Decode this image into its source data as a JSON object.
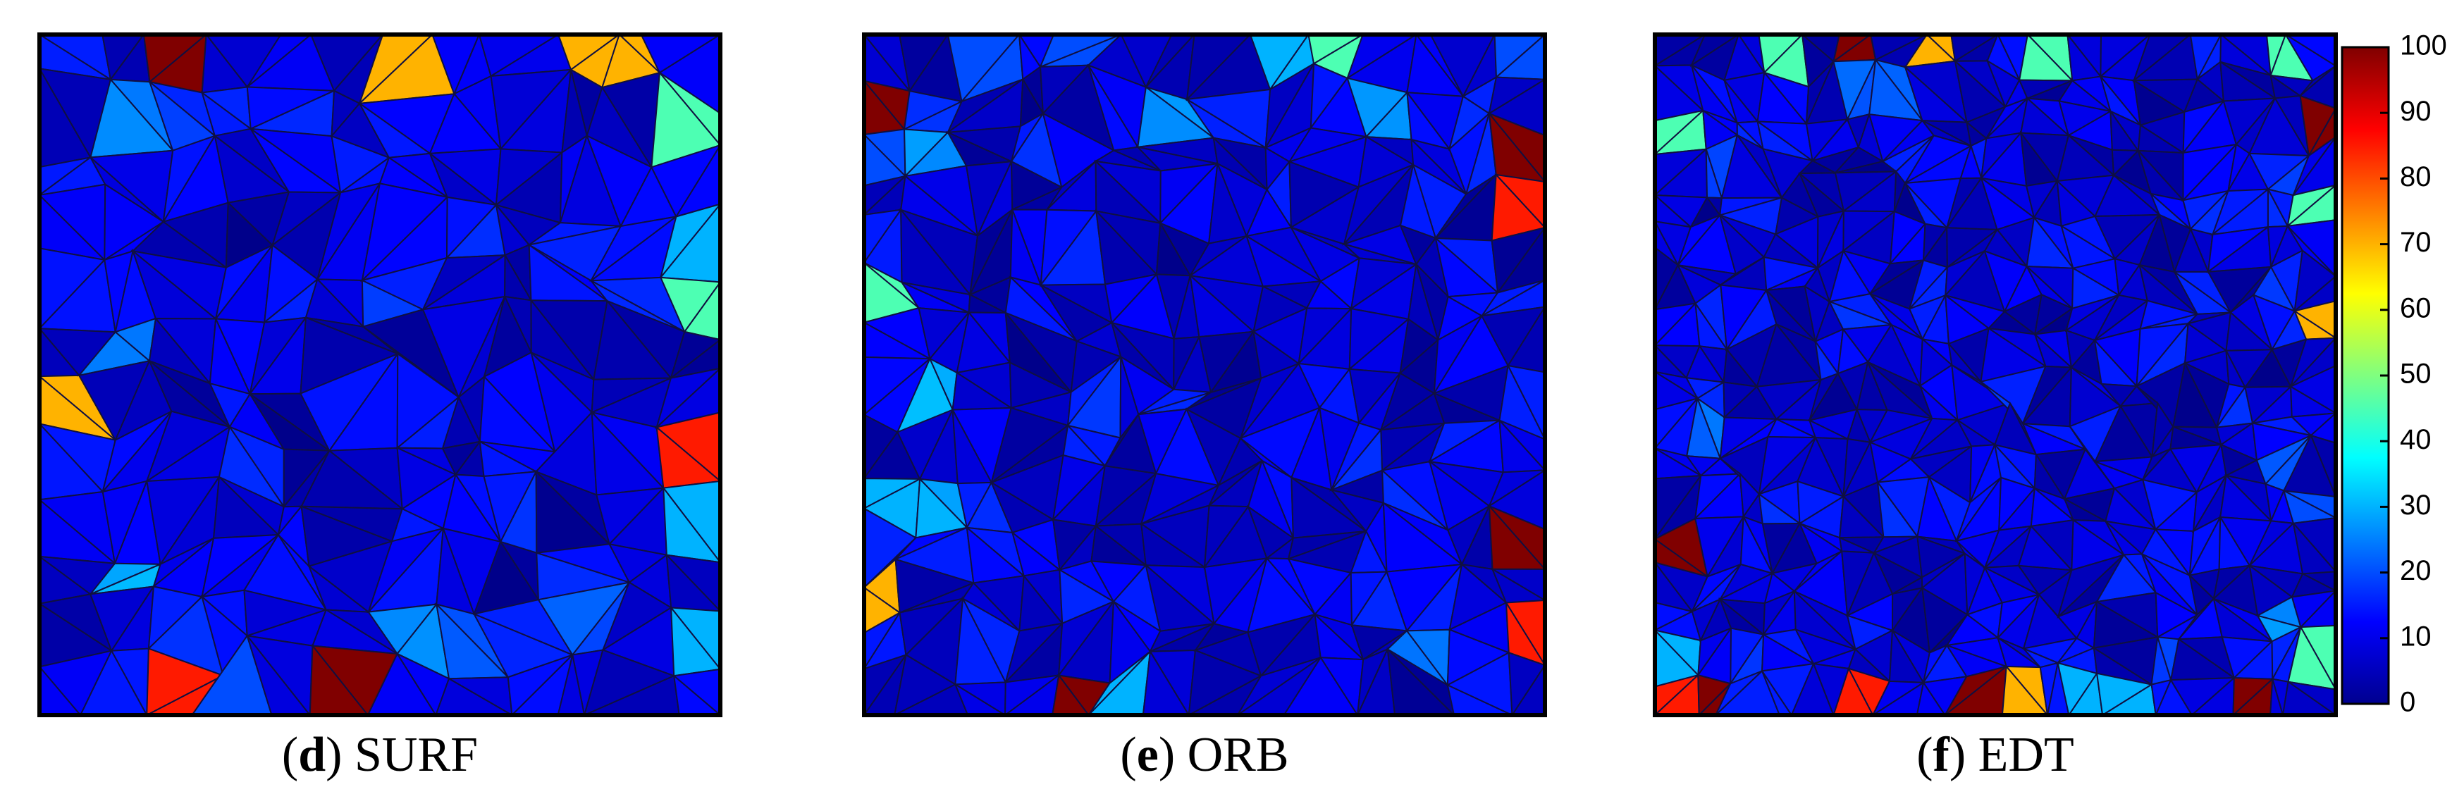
{
  "panels": [
    {
      "caption_parts": [
        "(",
        "d",
        ") SURF"
      ]
    },
    {
      "caption_parts": [
        "(",
        "e",
        ") ORB"
      ]
    },
    {
      "caption_parts": [
        "(",
        "f",
        ") EDT"
      ]
    }
  ],
  "colorbar": {
    "ticks": [
      0,
      10,
      20,
      30,
      40,
      50,
      60,
      70,
      80,
      90,
      100
    ],
    "range": [
      0,
      100
    ]
  }
}
